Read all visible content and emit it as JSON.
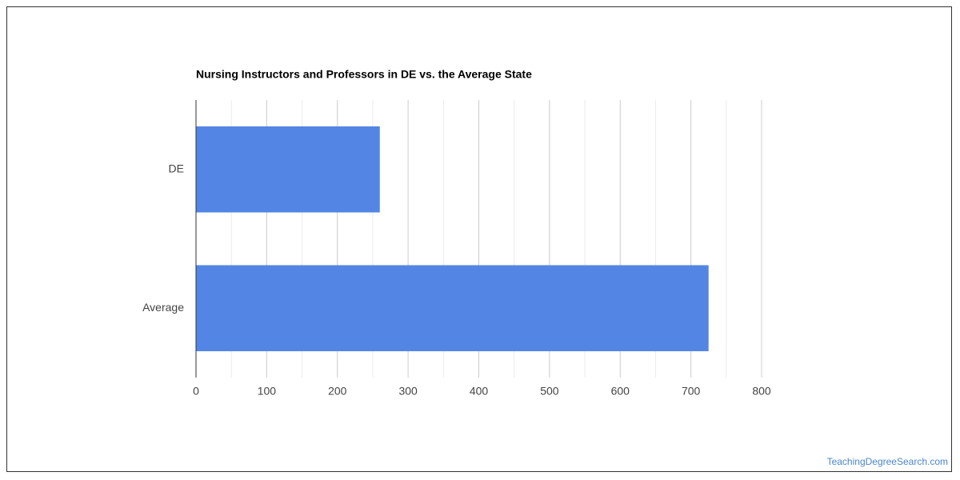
{
  "chart_data": {
    "type": "hbar",
    "title": "Nursing Instructors and Professors in DE vs. the Average State",
    "categories": [
      "DE",
      "Average"
    ],
    "values": [
      260,
      725
    ],
    "color": "#5386e4",
    "xlim": [
      0,
      800
    ],
    "xticks": [
      0,
      100,
      200,
      300,
      400,
      500,
      600,
      700,
      800
    ],
    "minor_xticks": [
      50,
      150,
      250,
      350,
      450,
      550,
      650,
      750
    ],
    "grid": true,
    "source": "TeachingDegreeSearch.com"
  }
}
